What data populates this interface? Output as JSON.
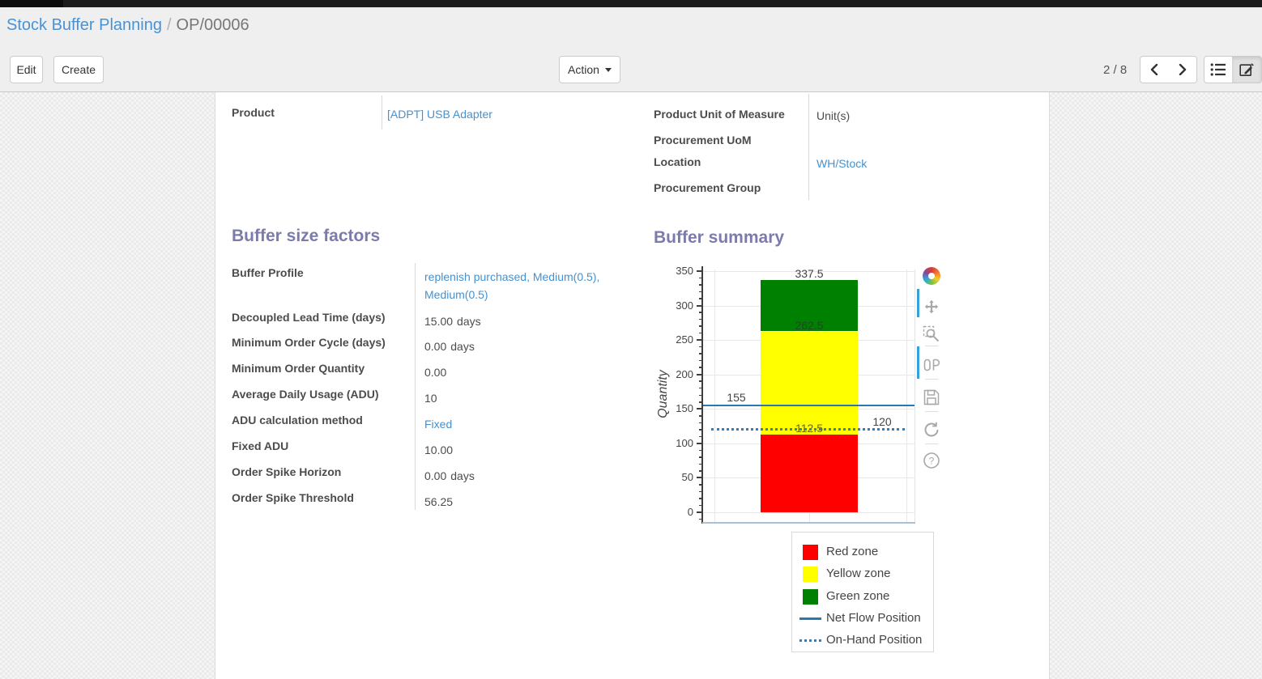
{
  "breadcrumb": {
    "parent": "Stock Buffer Planning",
    "separator": "/",
    "current": "OP/00006"
  },
  "toolbar": {
    "edit_label": "Edit",
    "create_label": "Create",
    "action_label": "Action",
    "pager_value": "2 / 8",
    "view_switcher": [
      {
        "name": "list-view",
        "icon": "list-icon",
        "active": false
      },
      {
        "name": "form-view",
        "icon": "edit-form-icon",
        "active": true
      }
    ]
  },
  "form": {
    "product": {
      "label": "Product",
      "value": "[ADPT] USB Adapter",
      "is_link": true
    },
    "details": [
      {
        "label": "Product Unit of Measure",
        "value": "Unit(s)",
        "is_link": false
      },
      {
        "label": "Procurement UoM",
        "value": "",
        "is_link": false
      },
      {
        "label": "Location",
        "value": "WH/Stock",
        "is_link": true
      },
      {
        "label": "Procurement Group",
        "value": "",
        "is_link": false
      }
    ],
    "buffer_size_factors": {
      "title": "Buffer size factors",
      "rows": [
        {
          "label": "Buffer Profile",
          "value": "replenish purchased, Medium(0.5), Medium(0.5)",
          "suffix": "",
          "is_link": true
        },
        {
          "label": "Decoupled Lead Time (days)",
          "value": "15.00",
          "suffix": "days",
          "is_link": false
        },
        {
          "label": "Minimum Order Cycle (days)",
          "value": "0.00",
          "suffix": "days",
          "is_link": false
        },
        {
          "label": "Minimum Order Quantity",
          "value": "0.00",
          "suffix": "",
          "is_link": false
        },
        {
          "label": "Average Daily Usage (ADU)",
          "value": "10",
          "suffix": "",
          "is_link": false
        },
        {
          "label": "ADU calculation method",
          "value": "Fixed",
          "suffix": "",
          "is_link": true
        },
        {
          "label": "Fixed ADU",
          "value": "10.00",
          "suffix": "",
          "is_link": false
        },
        {
          "label": "Order Spike Horizon",
          "value": "0.00",
          "suffix": "days",
          "is_link": false
        },
        {
          "label": "Order Spike Threshold",
          "value": "56.25",
          "suffix": "",
          "is_link": false
        }
      ]
    },
    "buffer_summary": {
      "title": "Buffer summary"
    }
  },
  "chart_data": {
    "type": "bar",
    "title": "",
    "xlabel": "",
    "ylabel": "Quantity",
    "ylim": [
      0,
      350
    ],
    "yticks": [
      0,
      50,
      100,
      150,
      200,
      250,
      300,
      350
    ],
    "minor_tick_step": 10,
    "grid": true,
    "categories": [
      ""
    ],
    "stacked": true,
    "series": [
      {
        "name": "Red zone",
        "values": [
          112.5
        ],
        "color": "#ff0000"
      },
      {
        "name": "Yellow zone",
        "values": [
          150
        ],
        "color": "#ffff00"
      },
      {
        "name": "Green zone",
        "values": [
          75
        ],
        "color": "#008000"
      }
    ],
    "zone_boundaries": {
      "red_top": 112.5,
      "yellow_top": 262.5,
      "green_top": 337.5
    },
    "hlines": [
      {
        "name": "Net Flow Position",
        "value": 155,
        "style": "solid",
        "color": "#2679b2"
      },
      {
        "name": "On-Hand Position",
        "value": 120,
        "style": "dotted",
        "color": "#2e80c4"
      }
    ],
    "annotations": [
      "337.5",
      "262.5",
      "155",
      "112.5",
      "120"
    ],
    "legend": [
      "Red zone",
      "Yellow zone",
      "Green zone",
      "Net Flow Position",
      "On-Hand Position"
    ],
    "legend_position": "bottom-right"
  },
  "modebar": {
    "icons": [
      "plotly-logo",
      "pan",
      "zoom-box",
      "compare-hover",
      "save",
      "autoscale",
      "help"
    ]
  }
}
